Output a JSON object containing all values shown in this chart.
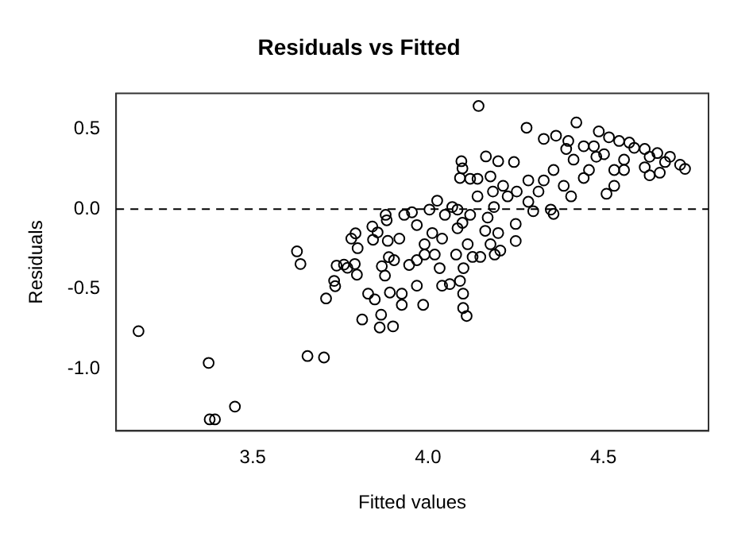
{
  "chart_data": {
    "type": "scatter",
    "title": "Residuals vs Fitted",
    "xlabel": "Fitted values",
    "ylabel": "Residuals",
    "xlim": [
      3.11,
      4.8
    ],
    "ylim": [
      -1.39,
      0.725
    ],
    "xticks": [
      3.5,
      {
        "value": 4,
        "label": "4.0"
      },
      4.5
    ],
    "yticks": [
      {
        "value": -1,
        "label": "-1.0"
      },
      -0.5,
      {
        "value": 0,
        "label": "0.0"
      },
      0.5
    ],
    "grid": false,
    "legend": false,
    "marker": "circle",
    "ref_lines": [
      {
        "axis": "y",
        "value": 0,
        "line_style": "dashed",
        "color": "#000000"
      }
    ],
    "series": [
      {
        "color": "#000000",
        "x": [
          3.174,
          3.374,
          3.377,
          3.392,
          3.449,
          3.626,
          3.636,
          3.656,
          3.703,
          3.709,
          3.732,
          3.735,
          3.739,
          3.76,
          3.77,
          3.781,
          3.793,
          3.791,
          3.797,
          3.799,
          3.812,
          3.829,
          3.841,
          3.848,
          3.843,
          3.856,
          3.862,
          3.866,
          3.879,
          3.882,
          3.885,
          3.888,
          3.877,
          3.891,
          3.9,
          3.868,
          3.925,
          3.925,
          3.918,
          3.932,
          3.954,
          3.968,
          3.968,
          3.968,
          3.986,
          3.99,
          4.004,
          4.026,
          4.012,
          4.019,
          4.04,
          4.04,
          4.062,
          4.048,
          4.069,
          4.084,
          4.091,
          4.1,
          4.1,
          4.11,
          4.101,
          4.08,
          4.084,
          4.098,
          4.113,
          4.127,
          4.12,
          4.141,
          4.144,
          4.095,
          4.098,
          4.091,
          4.12,
          4.141,
          4.165,
          4.2,
          4.245,
          4.178,
          4.185,
          4.188,
          4.17,
          4.178,
          4.2,
          4.206,
          4.25,
          4.25,
          4.214,
          4.227,
          4.253,
          4.286,
          4.286,
          4.3,
          4.315,
          4.33,
          4.358,
          4.35,
          4.358,
          4.365,
          4.281,
          4.33,
          4.4,
          4.394,
          4.387,
          4.415,
          4.423,
          4.444,
          4.459,
          4.473,
          4.48,
          4.502,
          4.509,
          4.531,
          4.487,
          4.516,
          4.545,
          4.574,
          4.559,
          4.559,
          4.531,
          4.618,
          4.632,
          4.618,
          4.632,
          4.661,
          4.654,
          4.69,
          4.719,
          4.733,
          4.676,
          4.588,
          4.444,
          4.408,
          4.19,
          4.149,
          4.163,
          4.033,
          3.99,
          3.946,
          3.903
        ],
        "values": [
          -0.765,
          -0.964,
          -1.318,
          -1.318,
          -1.238,
          -0.265,
          -0.344,
          -0.921,
          -0.93,
          -0.56,
          -0.45,
          -0.483,
          -0.354,
          -0.348,
          -0.368,
          -0.185,
          -0.152,
          -0.344,
          -0.411,
          -0.245,
          -0.692,
          -0.53,
          -0.109,
          -0.566,
          -0.192,
          -0.146,
          -0.742,
          -0.662,
          -0.036,
          -0.07,
          -0.199,
          -0.301,
          -0.417,
          -0.523,
          -0.735,
          -0.358,
          -0.53,
          -0.6,
          -0.185,
          -0.036,
          -0.02,
          -0.1,
          -0.32,
          -0.48,
          -0.6,
          -0.22,
          -0.003,
          0.053,
          -0.15,
          -0.285,
          -0.185,
          -0.48,
          -0.47,
          -0.036,
          0.013,
          -0.003,
          -0.45,
          -0.53,
          -0.62,
          -0.67,
          -0.37,
          -0.285,
          -0.12,
          -0.086,
          -0.22,
          -0.3,
          -0.036,
          0.08,
          0.646,
          0.3,
          0.255,
          0.195,
          0.19,
          0.19,
          0.33,
          0.3,
          0.295,
          0.205,
          0.11,
          0.013,
          -0.053,
          -0.22,
          -0.15,
          -0.26,
          -0.2,
          -0.093,
          0.146,
          0.08,
          0.11,
          0.18,
          0.046,
          -0.013,
          0.11,
          0.18,
          0.245,
          -0.003,
          -0.03,
          0.46,
          0.51,
          0.44,
          0.427,
          0.377,
          0.146,
          0.31,
          0.543,
          0.394,
          0.245,
          0.394,
          0.328,
          0.344,
          0.096,
          0.146,
          0.487,
          0.45,
          0.427,
          0.417,
          0.31,
          0.245,
          0.245,
          0.377,
          0.328,
          0.262,
          0.212,
          0.228,
          0.351,
          0.328,
          0.278,
          0.252,
          0.295,
          0.384,
          0.195,
          0.08,
          -0.285,
          -0.3,
          -0.136,
          -0.37,
          -0.285,
          -0.35,
          -0.32
        ]
      }
    ]
  }
}
